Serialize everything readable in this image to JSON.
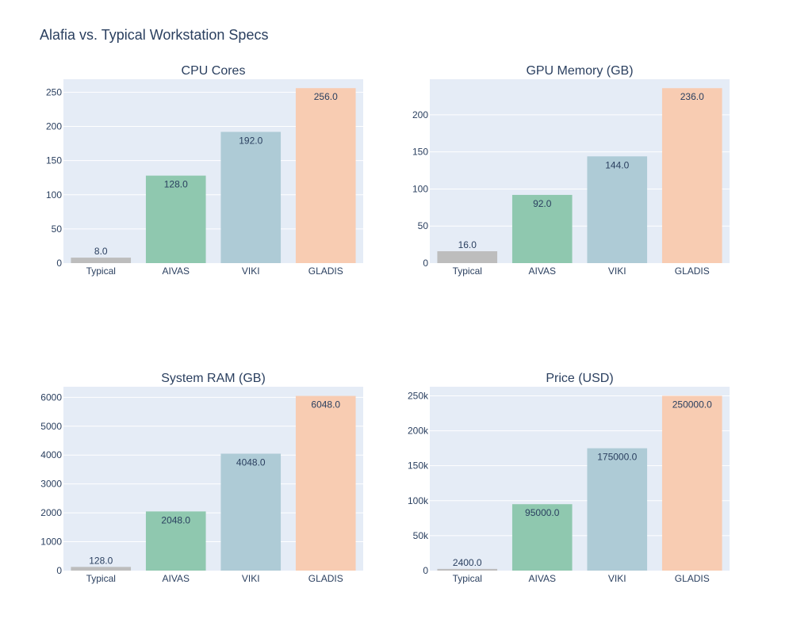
{
  "title": "Alafia vs. Typical Workstation Specs",
  "chart_data": [
    {
      "type": "bar",
      "title": "CPU Cores",
      "categories": [
        "Typical",
        "AIVAS",
        "VIKI",
        "GLADIS"
      ],
      "values": [
        8,
        128,
        192,
        256
      ],
      "data_labels": [
        "8.0",
        "128.0",
        "192.0",
        "256.0"
      ],
      "colors": [
        "#bdbdbd",
        "#8fc8af",
        "#aecbd6",
        "#f8ccb2"
      ],
      "ylim": [
        0,
        269
      ],
      "yticks": [
        0,
        50,
        100,
        150,
        200,
        250
      ],
      "ytick_labels": [
        "0",
        "50",
        "100",
        "150",
        "200",
        "250"
      ],
      "grid": true
    },
    {
      "type": "bar",
      "title": "GPU Memory (GB)",
      "categories": [
        "Typical",
        "AIVAS",
        "VIKI",
        "GLADIS"
      ],
      "values": [
        16,
        92,
        144,
        236
      ],
      "data_labels": [
        "16.0",
        "92.0",
        "144.0",
        "236.0"
      ],
      "colors": [
        "#bdbdbd",
        "#8fc8af",
        "#aecbd6",
        "#f8ccb2"
      ],
      "ylim": [
        0,
        248
      ],
      "yticks": [
        0,
        50,
        100,
        150,
        200
      ],
      "ytick_labels": [
        "0",
        "50",
        "100",
        "150",
        "200"
      ],
      "grid": true
    },
    {
      "type": "bar",
      "title": "System RAM (GB)",
      "categories": [
        "Typical",
        "AIVAS",
        "VIKI",
        "GLADIS"
      ],
      "values": [
        128,
        2048,
        4048,
        6048
      ],
      "data_labels": [
        "128.0",
        "2048.0",
        "4048.0",
        "6048.0"
      ],
      "colors": [
        "#bdbdbd",
        "#8fc8af",
        "#aecbd6",
        "#f8ccb2"
      ],
      "ylim": [
        0,
        6366
      ],
      "yticks": [
        0,
        1000,
        2000,
        3000,
        4000,
        5000,
        6000
      ],
      "ytick_labels": [
        "0",
        "1000",
        "2000",
        "3000",
        "4000",
        "5000",
        "6000"
      ],
      "grid": true
    },
    {
      "type": "bar",
      "title": "Price (USD)",
      "categories": [
        "Typical",
        "AIVAS",
        "VIKI",
        "GLADIS"
      ],
      "values": [
        2400,
        95000,
        175000,
        250000
      ],
      "data_labels": [
        "2400.0",
        "95000.0",
        "175000.0",
        "250000.0"
      ],
      "colors": [
        "#bdbdbd",
        "#8fc8af",
        "#aecbd6",
        "#f8ccb2"
      ],
      "ylim": [
        0,
        263000
      ],
      "yticks": [
        0,
        50000,
        100000,
        150000,
        200000,
        250000
      ],
      "ytick_labels": [
        "0",
        "50k",
        "100k",
        "150k",
        "200k",
        "250k"
      ],
      "grid": true
    }
  ]
}
